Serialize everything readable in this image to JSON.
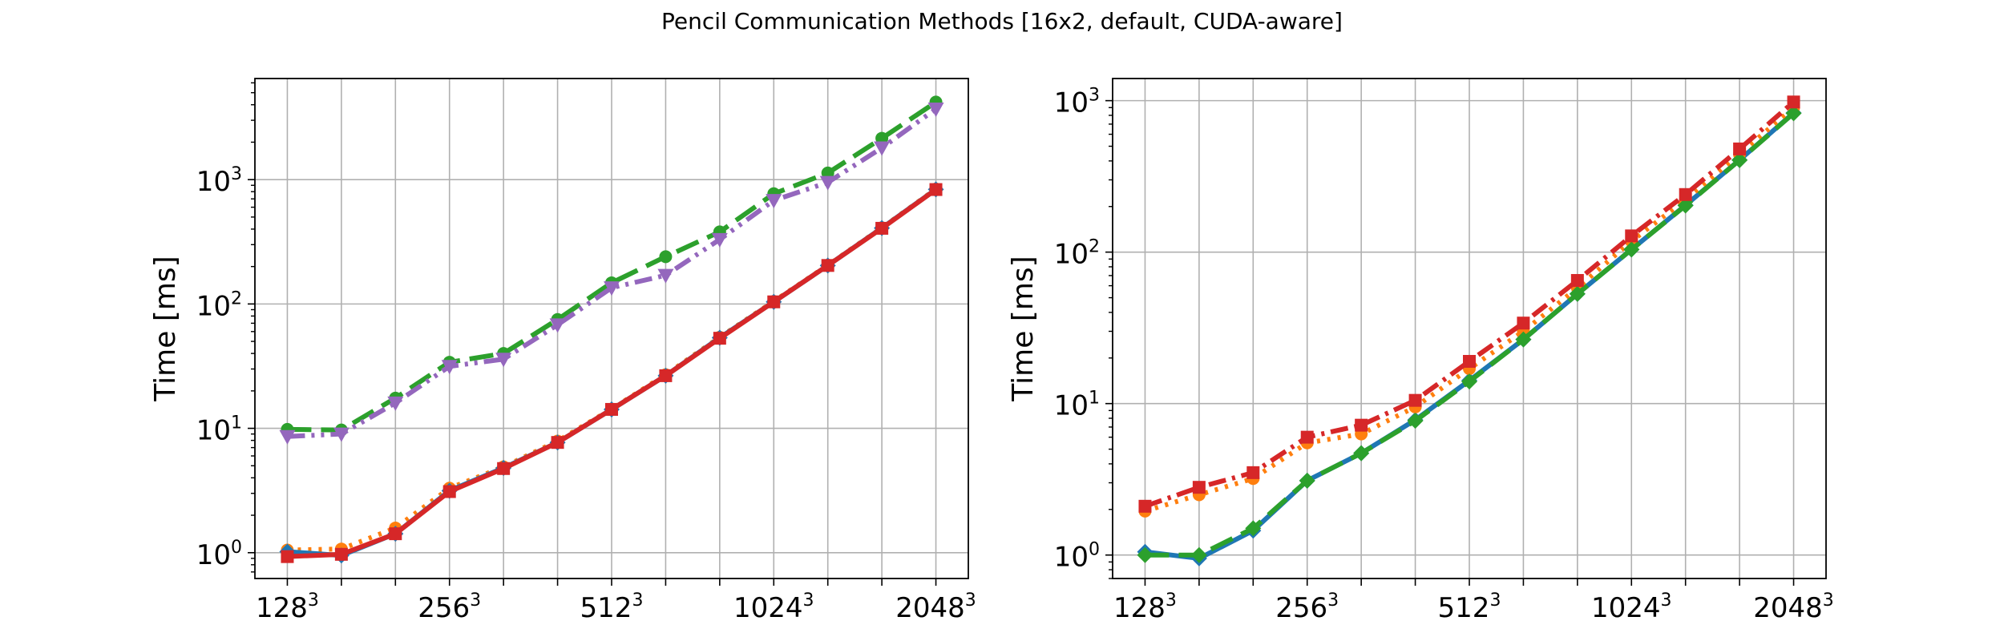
{
  "figure": {
    "title": "Pencil Communication Methods [16x2, default, CUDA-aware]"
  },
  "chart_data": [
    {
      "type": "line",
      "ylabel": "Time [ms]",
      "yscale": "log",
      "ylim": [
        0.62,
        6500
      ],
      "xlim": [
        -0.6,
        12.6
      ],
      "grid": true,
      "x": [
        0,
        1,
        2,
        3,
        4,
        5,
        6,
        7,
        8,
        9,
        10,
        11,
        12
      ],
      "xticks": [
        {
          "pos": 0,
          "base": "128",
          "exp": "3"
        },
        {
          "pos": 3,
          "base": "256",
          "exp": "3"
        },
        {
          "pos": 6,
          "base": "512",
          "exp": "3"
        },
        {
          "pos": 9,
          "base": "1024",
          "exp": "3"
        },
        {
          "pos": 12,
          "base": "2048",
          "exp": "3"
        }
      ],
      "yticks": [
        {
          "value": 1,
          "base": "10",
          "exp": "0"
        },
        {
          "value": 10,
          "base": "10",
          "exp": "1"
        },
        {
          "value": 100,
          "base": "10",
          "exp": "2"
        },
        {
          "value": 1000,
          "base": "10",
          "exp": "3"
        }
      ],
      "series": [
        {
          "color": "#ff7f0e",
          "dash": "4,9",
          "marker": "circle",
          "values": [
            1.05,
            1.07,
            1.58,
            3.3,
            4.9,
            7.9,
            14.3,
            27,
            54,
            105,
            205,
            410,
            840
          ]
        },
        {
          "color": "#2ca02c",
          "dash": "30,12",
          "marker": "circle",
          "values": [
            9.8,
            9.7,
            17.5,
            34,
            40,
            75,
            148,
            240,
            380,
            770,
            1130,
            2150,
            4200
          ]
        },
        {
          "color": "#9467bd",
          "dash": "22,8,4,8,4,8",
          "marker": "triangle-down",
          "values": [
            8.6,
            9.0,
            16,
            31.5,
            36,
            68,
            135,
            170,
            330,
            680,
            950,
            1800,
            3700
          ]
        },
        {
          "color": "#1f77b4",
          "dash": "",
          "marker": "diamond",
          "values": [
            1.02,
            0.95,
            1.42,
            3.15,
            4.8,
            7.7,
            14.2,
            26.5,
            53.5,
            104,
            204,
            408,
            835
          ]
        },
        {
          "color": "#d62728",
          "dash": "",
          "marker": "square",
          "values": [
            0.93,
            0.97,
            1.42,
            3.1,
            4.75,
            7.7,
            14.2,
            26.5,
            53,
            104,
            204,
            406,
            832
          ]
        }
      ]
    },
    {
      "type": "line",
      "ylabel": "Time [ms]",
      "yscale": "log",
      "ylim": [
        0.7,
        1400
      ],
      "xlim": [
        -0.6,
        12.6
      ],
      "grid": true,
      "x": [
        0,
        1,
        2,
        3,
        4,
        5,
        6,
        7,
        8,
        9,
        10,
        11,
        12
      ],
      "xticks": [
        {
          "pos": 0,
          "base": "128",
          "exp": "3"
        },
        {
          "pos": 3,
          "base": "256",
          "exp": "3"
        },
        {
          "pos": 6,
          "base": "512",
          "exp": "3"
        },
        {
          "pos": 9,
          "base": "1024",
          "exp": "3"
        },
        {
          "pos": 12,
          "base": "2048",
          "exp": "3"
        }
      ],
      "yticks": [
        {
          "value": 1,
          "base": "10",
          "exp": "0"
        },
        {
          "value": 10,
          "base": "10",
          "exp": "1"
        },
        {
          "value": 100,
          "base": "10",
          "exp": "2"
        },
        {
          "value": 1000,
          "base": "10",
          "exp": "3"
        }
      ],
      "series": [
        {
          "color": "#1f77b4",
          "dash": "",
          "marker": "diamond",
          "values": [
            1.05,
            0.95,
            1.45,
            3.1,
            4.7,
            7.8,
            14.2,
            26.5,
            53,
            104,
            204,
            406,
            830
          ]
        },
        {
          "color": "#ff7f0e",
          "dash": "4,9",
          "marker": "circle",
          "values": [
            1.95,
            2.5,
            3.2,
            5.5,
            6.3,
            9.5,
            17,
            30,
            58,
            118,
            222,
            445,
            900
          ]
        },
        {
          "color": "#2ca02c",
          "dash": "30,12",
          "marker": "diamond",
          "values": [
            1.0,
            1.0,
            1.5,
            3.1,
            4.7,
            7.7,
            14.0,
            26.5,
            53,
            104,
            203,
            405,
            825
          ]
        },
        {
          "color": "#d62728",
          "dash": "22,8,4,8",
          "marker": "square",
          "values": [
            2.1,
            2.8,
            3.5,
            6.0,
            7.2,
            10.5,
            19,
            34,
            65,
            128,
            240,
            480,
            980
          ]
        }
      ]
    }
  ]
}
